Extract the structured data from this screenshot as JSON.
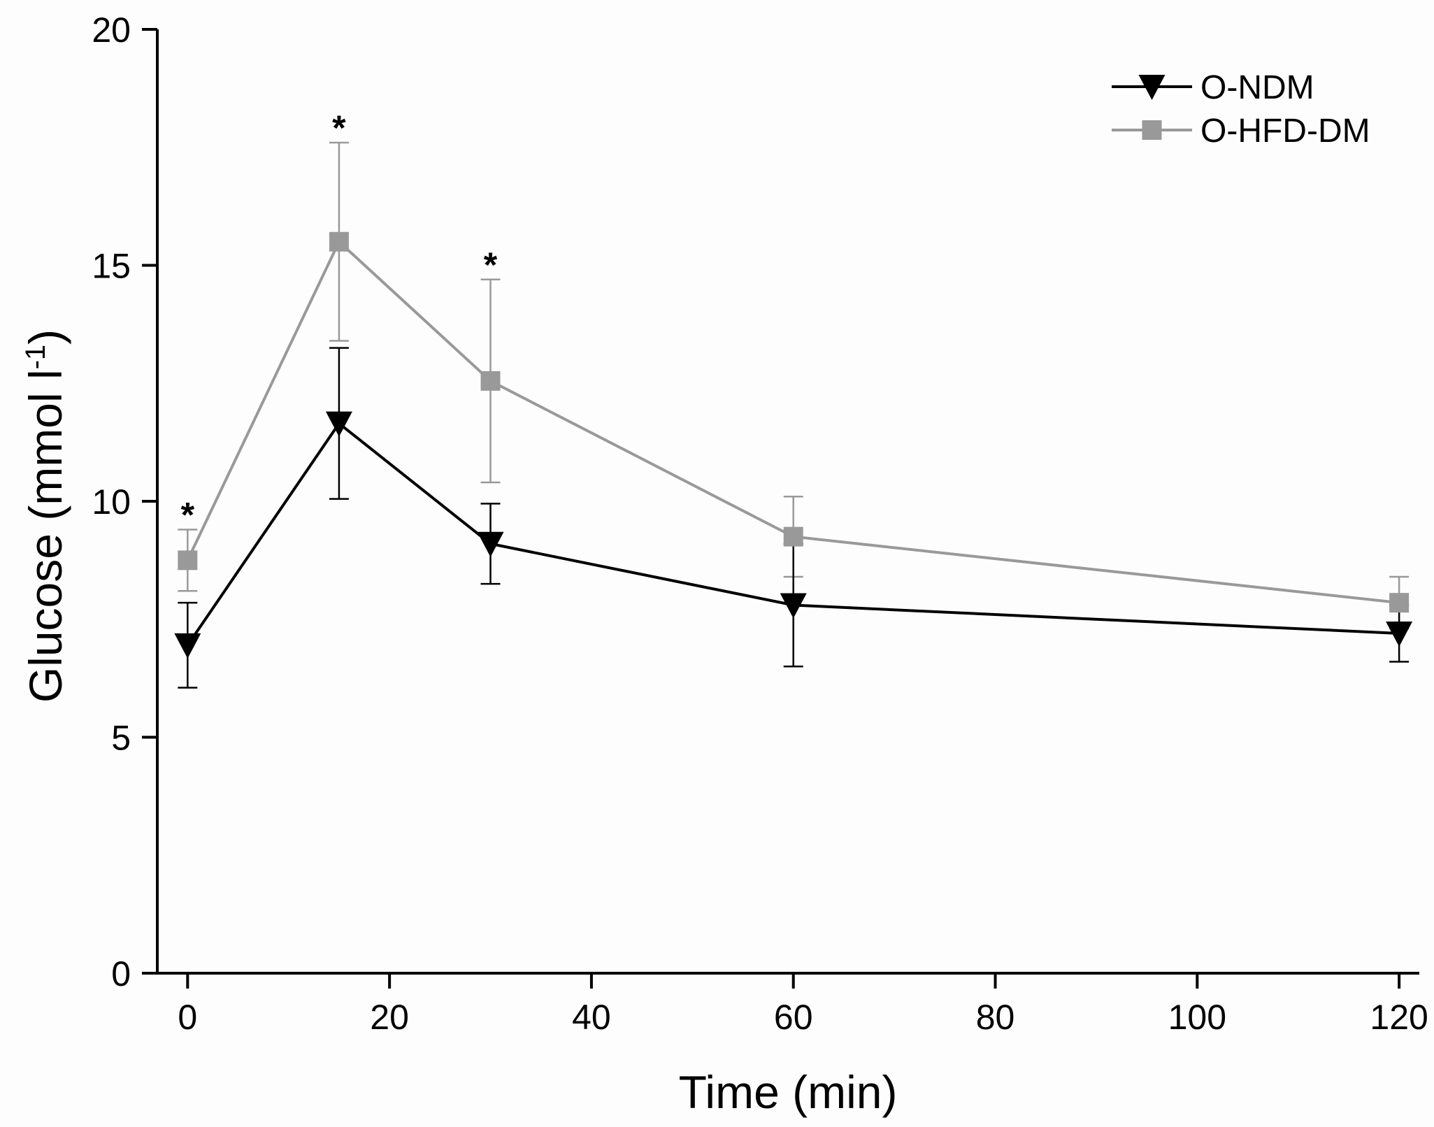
{
  "chart_data": {
    "type": "line",
    "title": "",
    "xlabel": "Time (min)",
    "ylabel_main": "Glucose (mmol l",
    "ylabel_sup": "-1",
    "ylabel_close": ")",
    "xlim": [
      -3,
      122
    ],
    "ylim": [
      0,
      20
    ],
    "xticks": [
      0,
      20,
      40,
      60,
      80,
      100,
      120
    ],
    "yticks": [
      0,
      5,
      10,
      15,
      20
    ],
    "x": [
      0,
      15,
      30,
      60,
      120
    ],
    "series": [
      {
        "name": "O-NDM",
        "color": "#000000",
        "marker": "triangle-down",
        "values": [
          6.95,
          11.65,
          9.1,
          7.8,
          7.2
        ],
        "errors": [
          0.9,
          1.6,
          0.85,
          1.3,
          0.6
        ]
      },
      {
        "name": "O-HFD-DM",
        "color": "#999999",
        "marker": "square",
        "values": [
          8.75,
          15.5,
          12.55,
          9.25,
          7.85
        ],
        "errors": [
          0.65,
          2.1,
          2.15,
          0.85,
          0.55
        ]
      }
    ],
    "significance": [
      {
        "x": 0,
        "label": "*"
      },
      {
        "x": 15,
        "label": "*"
      },
      {
        "x": 30,
        "label": "*"
      }
    ],
    "legend_position": "top-right",
    "grid": false
  }
}
